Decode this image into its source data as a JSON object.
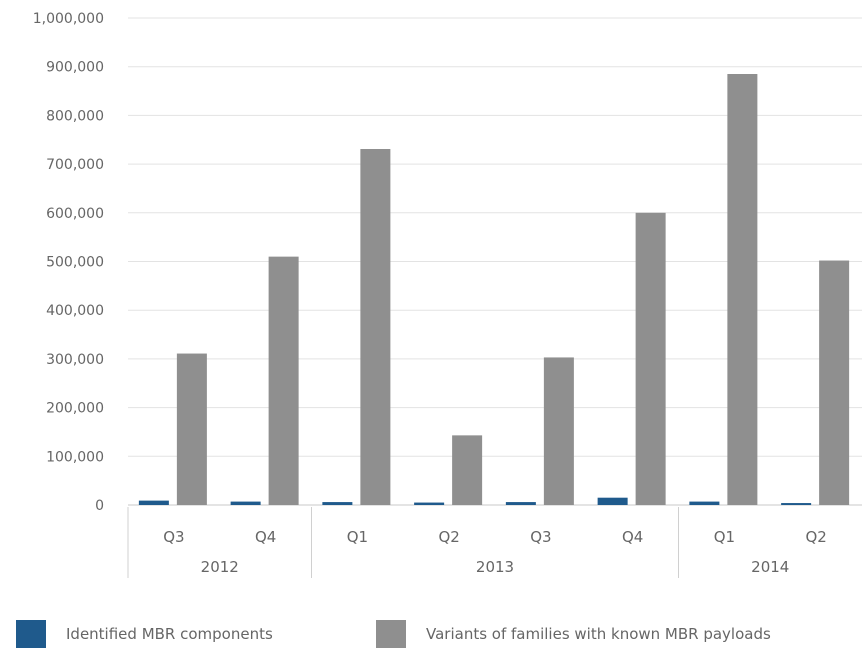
{
  "chart_data": {
    "type": "bar",
    "categories": [
      "Q3",
      "Q4",
      "Q1",
      "Q2",
      "Q3",
      "Q4",
      "Q1",
      "Q2"
    ],
    "groups": [
      {
        "label": "2012",
        "categories": [
          "Q3",
          "Q4"
        ]
      },
      {
        "label": "2013",
        "categories": [
          "Q1",
          "Q2",
          "Q3",
          "Q4"
        ]
      },
      {
        "label": "2014",
        "categories": [
          "Q1",
          "Q2"
        ]
      }
    ],
    "series": [
      {
        "name": "Identified MBR components",
        "color": "#1f5a8c",
        "values": [
          9000,
          7000,
          6000,
          5000,
          6000,
          15000,
          7000,
          4000
        ]
      },
      {
        "name": "Variants of families with known MBR payloads",
        "color": "#8f8f8f",
        "values": [
          311000,
          510000,
          731000,
          143000,
          303000,
          600000,
          885000,
          502000
        ]
      }
    ],
    "ylim": [
      0,
      1000000
    ],
    "yticks": [
      "0",
      "100,000",
      "200,000",
      "300,000",
      "400,000",
      "500,000",
      "600,000",
      "700,000",
      "800,000",
      "900,000",
      "1,000,000"
    ],
    "grid": true,
    "legend": "bottom"
  }
}
